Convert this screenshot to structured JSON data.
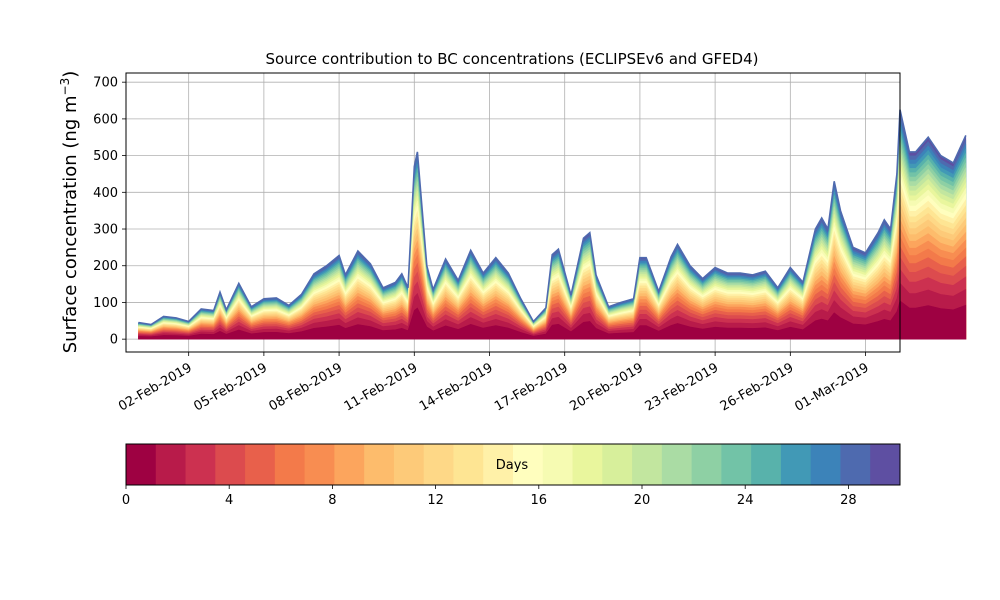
{
  "chart_data": {
    "type": "area",
    "stacked": true,
    "title": "Source contribution to BC concentrations (ECLIPSEv6 and GFED4)",
    "ylabel": "Surface concentration (ng m",
    "ylabel_sup": "−3",
    "ylabel_close": ")",
    "ylim": [
      -35,
      725
    ],
    "yticks": [
      0,
      100,
      200,
      300,
      400,
      500,
      600,
      700
    ],
    "x_start": "31-Jan-2019",
    "x_end": "01-Mar-2019",
    "xlim": [
      "30-Jan-2019 12:00",
      "02-Mar-2019 09:00"
    ],
    "xticks": [
      "02-Feb-2019",
      "05-Feb-2019",
      "08-Feb-2019",
      "11-Feb-2019",
      "14-Feb-2019",
      "17-Feb-2019",
      "20-Feb-2019",
      "23-Feb-2019",
      "26-Feb-2019",
      "01-Mar-2019"
    ],
    "grid": true,
    "total": [
      [
        "31-Jan-2019 00:00",
        45
      ],
      [
        "31-Jan-2019 12:00",
        40
      ],
      [
        "01-Feb-2019 00:00",
        62
      ],
      [
        "01-Feb-2019 12:00",
        58
      ],
      [
        "02-Feb-2019 00:00",
        48
      ],
      [
        "02-Feb-2019 12:00",
        82
      ],
      [
        "03-Feb-2019 00:00",
        78
      ],
      [
        "03-Feb-2019 06:00",
        128
      ],
      [
        "03-Feb-2019 12:00",
        80
      ],
      [
        "04-Feb-2019 00:00",
        152
      ],
      [
        "04-Feb-2019 12:00",
        88
      ],
      [
        "05-Feb-2019 00:00",
        110
      ],
      [
        "05-Feb-2019 12:00",
        112
      ],
      [
        "06-Feb-2019 00:00",
        92
      ],
      [
        "06-Feb-2019 12:00",
        122
      ],
      [
        "07-Feb-2019 00:00",
        178
      ],
      [
        "07-Feb-2019 12:00",
        200
      ],
      [
        "08-Feb-2019 00:00",
        228
      ],
      [
        "08-Feb-2019 06:00",
        175
      ],
      [
        "08-Feb-2019 18:00",
        240
      ],
      [
        "09-Feb-2019 06:00",
        205
      ],
      [
        "09-Feb-2019 18:00",
        140
      ],
      [
        "10-Feb-2019 06:00",
        155
      ],
      [
        "10-Feb-2019 12:00",
        178
      ],
      [
        "10-Feb-2019 18:00",
        140
      ],
      [
        "11-Feb-2019 00:00",
        470
      ],
      [
        "11-Feb-2019 03:00",
        510
      ],
      [
        "11-Feb-2019 12:00",
        200
      ],
      [
        "11-Feb-2019 18:00",
        135
      ],
      [
        "12-Feb-2019 06:00",
        218
      ],
      [
        "12-Feb-2019 18:00",
        160
      ],
      [
        "13-Feb-2019 06:00",
        242
      ],
      [
        "13-Feb-2019 18:00",
        180
      ],
      [
        "14-Feb-2019 06:00",
        222
      ],
      [
        "14-Feb-2019 18:00",
        180
      ],
      [
        "15-Feb-2019 06:00",
        110
      ],
      [
        "15-Feb-2019 18:00",
        48
      ],
      [
        "16-Feb-2019 06:00",
        85
      ],
      [
        "16-Feb-2019 12:00",
        230
      ],
      [
        "16-Feb-2019 18:00",
        245
      ],
      [
        "17-Feb-2019 06:00",
        120
      ],
      [
        "17-Feb-2019 18:00",
        275
      ],
      [
        "18-Feb-2019 00:00",
        290
      ],
      [
        "18-Feb-2019 06:00",
        175
      ],
      [
        "18-Feb-2019 18:00",
        88
      ],
      [
        "19-Feb-2019 06:00",
        100
      ],
      [
        "19-Feb-2019 18:00",
        110
      ],
      [
        "20-Feb-2019 00:00",
        222
      ],
      [
        "20-Feb-2019 06:00",
        222
      ],
      [
        "20-Feb-2019 18:00",
        130
      ],
      [
        "21-Feb-2019 06:00",
        225
      ],
      [
        "21-Feb-2019 12:00",
        258
      ],
      [
        "22-Feb-2019 00:00",
        200
      ],
      [
        "22-Feb-2019 12:00",
        165
      ],
      [
        "23-Feb-2019 00:00",
        195
      ],
      [
        "23-Feb-2019 12:00",
        180
      ],
      [
        "24-Feb-2019 00:00",
        180
      ],
      [
        "24-Feb-2019 12:00",
        175
      ],
      [
        "25-Feb-2019 00:00",
        185
      ],
      [
        "25-Feb-2019 12:00",
        140
      ],
      [
        "26-Feb-2019 00:00",
        195
      ],
      [
        "26-Feb-2019 12:00",
        155
      ],
      [
        "27-Feb-2019 00:00",
        300
      ],
      [
        "27-Feb-2019 06:00",
        330
      ],
      [
        "27-Feb-2019 12:00",
        300
      ],
      [
        "27-Feb-2019 18:00",
        430
      ],
      [
        "28-Feb-2019 00:00",
        350
      ],
      [
        "28-Feb-2019 12:00",
        250
      ],
      [
        "01-Mar-2019 00:00",
        235
      ],
      [
        "01-Mar-2019 12:00",
        290
      ],
      [
        "01-Mar-2019 18:00",
        325
      ],
      [
        "02-Mar-2019 00:00",
        300
      ],
      [
        "02-Mar-2019 06:00",
        450
      ],
      [
        "02-Mar-2019 09:00",
        625
      ],
      [
        "02-Mar-2019 18:00",
        510
      ],
      [
        "03-Mar-2019 00:00",
        510
      ],
      [
        "03-Mar-2019 12:00",
        550
      ],
      [
        "04-Mar-2019 00:00",
        500
      ],
      [
        "04-Mar-2019 12:00",
        480
      ],
      [
        "05-Mar-2019 00:00",
        555
      ]
    ],
    "colorbar": {
      "label": "Days",
      "min": 0,
      "max": 30,
      "ticks": [
        0,
        4,
        8,
        12,
        16,
        20,
        24,
        28
      ],
      "colors": [
        "#9e0142",
        "#b81b4a",
        "#cc3150",
        "#dc4b4e",
        "#e8604b",
        "#f37a4a",
        "#f88d51",
        "#fca55d",
        "#fdbc6c",
        "#fdca79",
        "#fed887",
        "#fee593",
        "#fff1a8",
        "#fffebe",
        "#f6fbb2",
        "#e9f69d",
        "#d7ef9b",
        "#c2e69f",
        "#aadca4",
        "#8ed0a4",
        "#72c3a7",
        "#58b2ab",
        "#4199b6",
        "#3c83b9",
        "#4e6aaf",
        "#5e4fa2"
      ]
    }
  }
}
